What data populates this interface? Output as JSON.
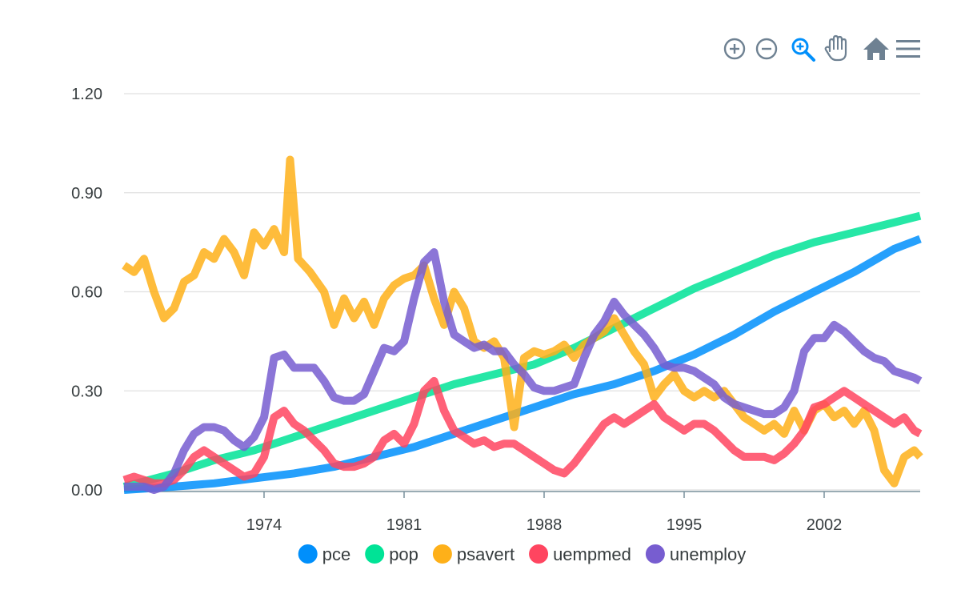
{
  "toolbar": {
    "items": [
      {
        "name": "zoom-in-icon",
        "label": "zoom-in"
      },
      {
        "name": "zoom-out-icon",
        "label": "zoom-out"
      },
      {
        "name": "selection-zoom-icon",
        "label": "selection-zoom"
      },
      {
        "name": "pan-hand-icon",
        "label": "pan"
      },
      {
        "name": "reset-home-icon",
        "label": "reset"
      },
      {
        "name": "menu-icon",
        "label": "menu"
      }
    ],
    "active_color": "#008ffb",
    "icon_color": "#6e8192"
  },
  "chart_data": {
    "type": "line",
    "title": "",
    "xlabel": "",
    "ylabel": "",
    "xlim": [
      1967.5,
      2007.3
    ],
    "ylim": [
      0,
      1.2
    ],
    "yticks": [
      "0.00",
      "0.30",
      "0.60",
      "0.90",
      "1.20"
    ],
    "ytick_values": [
      0,
      0.3,
      0.6,
      0.9,
      1.2
    ],
    "xticks": [
      "1974",
      "1981",
      "1988",
      "1995",
      "2002"
    ],
    "xtick_values": [
      1974.5,
      1981.5,
      1988.5,
      1995.5,
      2002.5
    ],
    "grid": true,
    "legend_position": "bottom",
    "series": [
      {
        "name": "pce",
        "color": "#008ffb",
        "points": [
          [
            1967.5,
            0.0
          ],
          [
            1970,
            0.01
          ],
          [
            1972,
            0.02
          ],
          [
            1974,
            0.035
          ],
          [
            1976,
            0.05
          ],
          [
            1978,
            0.07
          ],
          [
            1980,
            0.1
          ],
          [
            1982,
            0.13
          ],
          [
            1984,
            0.17
          ],
          [
            1986,
            0.21
          ],
          [
            1988,
            0.25
          ],
          [
            1990,
            0.29
          ],
          [
            1992,
            0.32
          ],
          [
            1994,
            0.36
          ],
          [
            1996,
            0.41
          ],
          [
            1998,
            0.47
          ],
          [
            2000,
            0.54
          ],
          [
            2002,
            0.6
          ],
          [
            2004,
            0.66
          ],
          [
            2006,
            0.73
          ],
          [
            2007.3,
            0.76
          ]
        ]
      },
      {
        "name": "pop",
        "color": "#00e396",
        "points": [
          [
            1967.5,
            0.01
          ],
          [
            1970,
            0.05
          ],
          [
            1972,
            0.09
          ],
          [
            1974,
            0.12
          ],
          [
            1976,
            0.16
          ],
          [
            1978,
            0.2
          ],
          [
            1980,
            0.24
          ],
          [
            1982,
            0.28
          ],
          [
            1984,
            0.32
          ],
          [
            1986,
            0.35
          ],
          [
            1988,
            0.38
          ],
          [
            1990,
            0.43
          ],
          [
            1992,
            0.49
          ],
          [
            1994,
            0.55
          ],
          [
            1996,
            0.61
          ],
          [
            1998,
            0.66
          ],
          [
            2000,
            0.71
          ],
          [
            2002,
            0.75
          ],
          [
            2004,
            0.78
          ],
          [
            2006,
            0.81
          ],
          [
            2007.3,
            0.83
          ]
        ]
      },
      {
        "name": "psavert",
        "color": "#feb019",
        "points": [
          [
            1967.5,
            0.68
          ],
          [
            1968,
            0.66
          ],
          [
            1968.5,
            0.7
          ],
          [
            1969,
            0.6
          ],
          [
            1969.5,
            0.52
          ],
          [
            1970,
            0.55
          ],
          [
            1970.5,
            0.63
          ],
          [
            1971,
            0.65
          ],
          [
            1971.5,
            0.72
          ],
          [
            1972,
            0.7
          ],
          [
            1972.5,
            0.76
          ],
          [
            1973,
            0.72
          ],
          [
            1973.5,
            0.65
          ],
          [
            1974,
            0.78
          ],
          [
            1974.5,
            0.74
          ],
          [
            1975,
            0.79
          ],
          [
            1975.5,
            0.72
          ],
          [
            1975.8,
            1.0
          ],
          [
            1976.2,
            0.7
          ],
          [
            1976.8,
            0.66
          ],
          [
            1977.5,
            0.6
          ],
          [
            1978,
            0.5
          ],
          [
            1978.5,
            0.58
          ],
          [
            1979,
            0.52
          ],
          [
            1979.5,
            0.57
          ],
          [
            1980,
            0.5
          ],
          [
            1980.5,
            0.58
          ],
          [
            1981,
            0.62
          ],
          [
            1981.5,
            0.64
          ],
          [
            1982,
            0.65
          ],
          [
            1982.5,
            0.68
          ],
          [
            1983,
            0.58
          ],
          [
            1983.5,
            0.5
          ],
          [
            1984,
            0.6
          ],
          [
            1984.5,
            0.55
          ],
          [
            1985,
            0.45
          ],
          [
            1985.5,
            0.43
          ],
          [
            1986,
            0.45
          ],
          [
            1986.5,
            0.4
          ],
          [
            1987,
            0.19
          ],
          [
            1987.5,
            0.4
          ],
          [
            1988,
            0.42
          ],
          [
            1988.5,
            0.41
          ],
          [
            1989,
            0.42
          ],
          [
            1989.5,
            0.44
          ],
          [
            1990,
            0.4
          ],
          [
            1990.5,
            0.44
          ],
          [
            1991,
            0.46
          ],
          [
            1991.5,
            0.48
          ],
          [
            1992,
            0.52
          ],
          [
            1992.5,
            0.47
          ],
          [
            1993,
            0.42
          ],
          [
            1993.5,
            0.38
          ],
          [
            1994,
            0.28
          ],
          [
            1994.5,
            0.32
          ],
          [
            1995,
            0.35
          ],
          [
            1995.5,
            0.3
          ],
          [
            1996,
            0.28
          ],
          [
            1996.5,
            0.3
          ],
          [
            1997,
            0.28
          ],
          [
            1997.5,
            0.3
          ],
          [
            1998,
            0.26
          ],
          [
            1998.5,
            0.22
          ],
          [
            1999,
            0.2
          ],
          [
            1999.5,
            0.18
          ],
          [
            2000,
            0.2
          ],
          [
            2000.5,
            0.17
          ],
          [
            2001,
            0.24
          ],
          [
            2001.5,
            0.18
          ],
          [
            2002,
            0.24
          ],
          [
            2002.5,
            0.26
          ],
          [
            2003,
            0.22
          ],
          [
            2003.5,
            0.24
          ],
          [
            2004,
            0.2
          ],
          [
            2004.5,
            0.24
          ],
          [
            2005,
            0.18
          ],
          [
            2005.5,
            0.06
          ],
          [
            2006,
            0.02
          ],
          [
            2006.5,
            0.1
          ],
          [
            2007,
            0.12
          ],
          [
            2007.3,
            0.1
          ]
        ]
      },
      {
        "name": "uempmed",
        "color": "#ff4560",
        "points": [
          [
            1967.5,
            0.03
          ],
          [
            1968,
            0.04
          ],
          [
            1968.5,
            0.03
          ],
          [
            1969,
            0.02
          ],
          [
            1969.5,
            0.02
          ],
          [
            1970,
            0.03
          ],
          [
            1970.5,
            0.06
          ],
          [
            1971,
            0.1
          ],
          [
            1971.5,
            0.12
          ],
          [
            1972,
            0.1
          ],
          [
            1972.5,
            0.08
          ],
          [
            1973,
            0.06
          ],
          [
            1973.5,
            0.04
          ],
          [
            1974,
            0.05
          ],
          [
            1974.5,
            0.1
          ],
          [
            1975,
            0.22
          ],
          [
            1975.5,
            0.24
          ],
          [
            1976,
            0.2
          ],
          [
            1976.5,
            0.18
          ],
          [
            1977,
            0.15
          ],
          [
            1977.5,
            0.12
          ],
          [
            1978,
            0.08
          ],
          [
            1978.5,
            0.07
          ],
          [
            1979,
            0.07
          ],
          [
            1979.5,
            0.08
          ],
          [
            1980,
            0.1
          ],
          [
            1980.5,
            0.15
          ],
          [
            1981,
            0.17
          ],
          [
            1981.5,
            0.14
          ],
          [
            1982,
            0.2
          ],
          [
            1982.5,
            0.3
          ],
          [
            1983,
            0.33
          ],
          [
            1983.5,
            0.24
          ],
          [
            1984,
            0.18
          ],
          [
            1984.5,
            0.16
          ],
          [
            1985,
            0.14
          ],
          [
            1985.5,
            0.15
          ],
          [
            1986,
            0.13
          ],
          [
            1986.5,
            0.14
          ],
          [
            1987,
            0.14
          ],
          [
            1987.5,
            0.12
          ],
          [
            1988,
            0.1
          ],
          [
            1988.5,
            0.08
          ],
          [
            1989,
            0.06
          ],
          [
            1989.5,
            0.05
          ],
          [
            1990,
            0.08
          ],
          [
            1990.5,
            0.12
          ],
          [
            1991,
            0.16
          ],
          [
            1991.5,
            0.2
          ],
          [
            1992,
            0.22
          ],
          [
            1992.5,
            0.2
          ],
          [
            1993,
            0.22
          ],
          [
            1993.5,
            0.24
          ],
          [
            1994,
            0.26
          ],
          [
            1994.5,
            0.22
          ],
          [
            1995,
            0.2
          ],
          [
            1995.5,
            0.18
          ],
          [
            1996,
            0.2
          ],
          [
            1996.5,
            0.2
          ],
          [
            1997,
            0.18
          ],
          [
            1997.5,
            0.15
          ],
          [
            1998,
            0.12
          ],
          [
            1998.5,
            0.1
          ],
          [
            1999,
            0.1
          ],
          [
            1999.5,
            0.1
          ],
          [
            2000,
            0.09
          ],
          [
            2000.5,
            0.11
          ],
          [
            2001,
            0.14
          ],
          [
            2001.5,
            0.18
          ],
          [
            2002,
            0.25
          ],
          [
            2002.5,
            0.26
          ],
          [
            2003,
            0.28
          ],
          [
            2003.5,
            0.3
          ],
          [
            2004,
            0.28
          ],
          [
            2004.5,
            0.26
          ],
          [
            2005,
            0.24
          ],
          [
            2005.5,
            0.22
          ],
          [
            2006,
            0.2
          ],
          [
            2006.5,
            0.22
          ],
          [
            2007,
            0.18
          ],
          [
            2007.3,
            0.17
          ]
        ]
      },
      {
        "name": "unemploy",
        "color": "#775dd0",
        "points": [
          [
            1967.5,
            0.01
          ],
          [
            1968,
            0.01
          ],
          [
            1968.5,
            0.01
          ],
          [
            1969,
            0.0
          ],
          [
            1969.5,
            0.01
          ],
          [
            1970,
            0.05
          ],
          [
            1970.5,
            0.12
          ],
          [
            1971,
            0.17
          ],
          [
            1971.5,
            0.19
          ],
          [
            1972,
            0.19
          ],
          [
            1972.5,
            0.18
          ],
          [
            1973,
            0.15
          ],
          [
            1973.5,
            0.13
          ],
          [
            1974,
            0.16
          ],
          [
            1974.5,
            0.22
          ],
          [
            1975,
            0.4
          ],
          [
            1975.5,
            0.41
          ],
          [
            1976,
            0.37
          ],
          [
            1976.5,
            0.37
          ],
          [
            1977,
            0.37
          ],
          [
            1977.5,
            0.33
          ],
          [
            1978,
            0.28
          ],
          [
            1978.5,
            0.27
          ],
          [
            1979,
            0.27
          ],
          [
            1979.5,
            0.29
          ],
          [
            1980,
            0.36
          ],
          [
            1980.5,
            0.43
          ],
          [
            1981,
            0.42
          ],
          [
            1981.5,
            0.45
          ],
          [
            1982,
            0.58
          ],
          [
            1982.5,
            0.69
          ],
          [
            1983,
            0.72
          ],
          [
            1983.5,
            0.57
          ],
          [
            1984,
            0.47
          ],
          [
            1984.5,
            0.45
          ],
          [
            1985,
            0.43
          ],
          [
            1985.5,
            0.44
          ],
          [
            1986,
            0.42
          ],
          [
            1986.5,
            0.42
          ],
          [
            1987,
            0.38
          ],
          [
            1987.5,
            0.35
          ],
          [
            1988,
            0.31
          ],
          [
            1988.5,
            0.3
          ],
          [
            1989,
            0.3
          ],
          [
            1989.5,
            0.31
          ],
          [
            1990,
            0.32
          ],
          [
            1990.5,
            0.4
          ],
          [
            1991,
            0.47
          ],
          [
            1991.5,
            0.51
          ],
          [
            1992,
            0.57
          ],
          [
            1992.5,
            0.53
          ],
          [
            1993,
            0.5
          ],
          [
            1993.5,
            0.47
          ],
          [
            1994,
            0.43
          ],
          [
            1994.5,
            0.38
          ],
          [
            1995,
            0.37
          ],
          [
            1995.5,
            0.37
          ],
          [
            1996,
            0.36
          ],
          [
            1996.5,
            0.34
          ],
          [
            1997,
            0.32
          ],
          [
            1997.5,
            0.28
          ],
          [
            1998,
            0.26
          ],
          [
            1998.5,
            0.25
          ],
          [
            1999,
            0.24
          ],
          [
            1999.5,
            0.23
          ],
          [
            2000,
            0.23
          ],
          [
            2000.5,
            0.25
          ],
          [
            2001,
            0.3
          ],
          [
            2001.5,
            0.42
          ],
          [
            2002,
            0.46
          ],
          [
            2002.5,
            0.46
          ],
          [
            2003,
            0.5
          ],
          [
            2003.5,
            0.48
          ],
          [
            2004,
            0.45
          ],
          [
            2004.5,
            0.42
          ],
          [
            2005,
            0.4
          ],
          [
            2005.5,
            0.39
          ],
          [
            2006,
            0.36
          ],
          [
            2006.5,
            0.35
          ],
          [
            2007,
            0.34
          ],
          [
            2007.3,
            0.33
          ]
        ]
      }
    ]
  }
}
